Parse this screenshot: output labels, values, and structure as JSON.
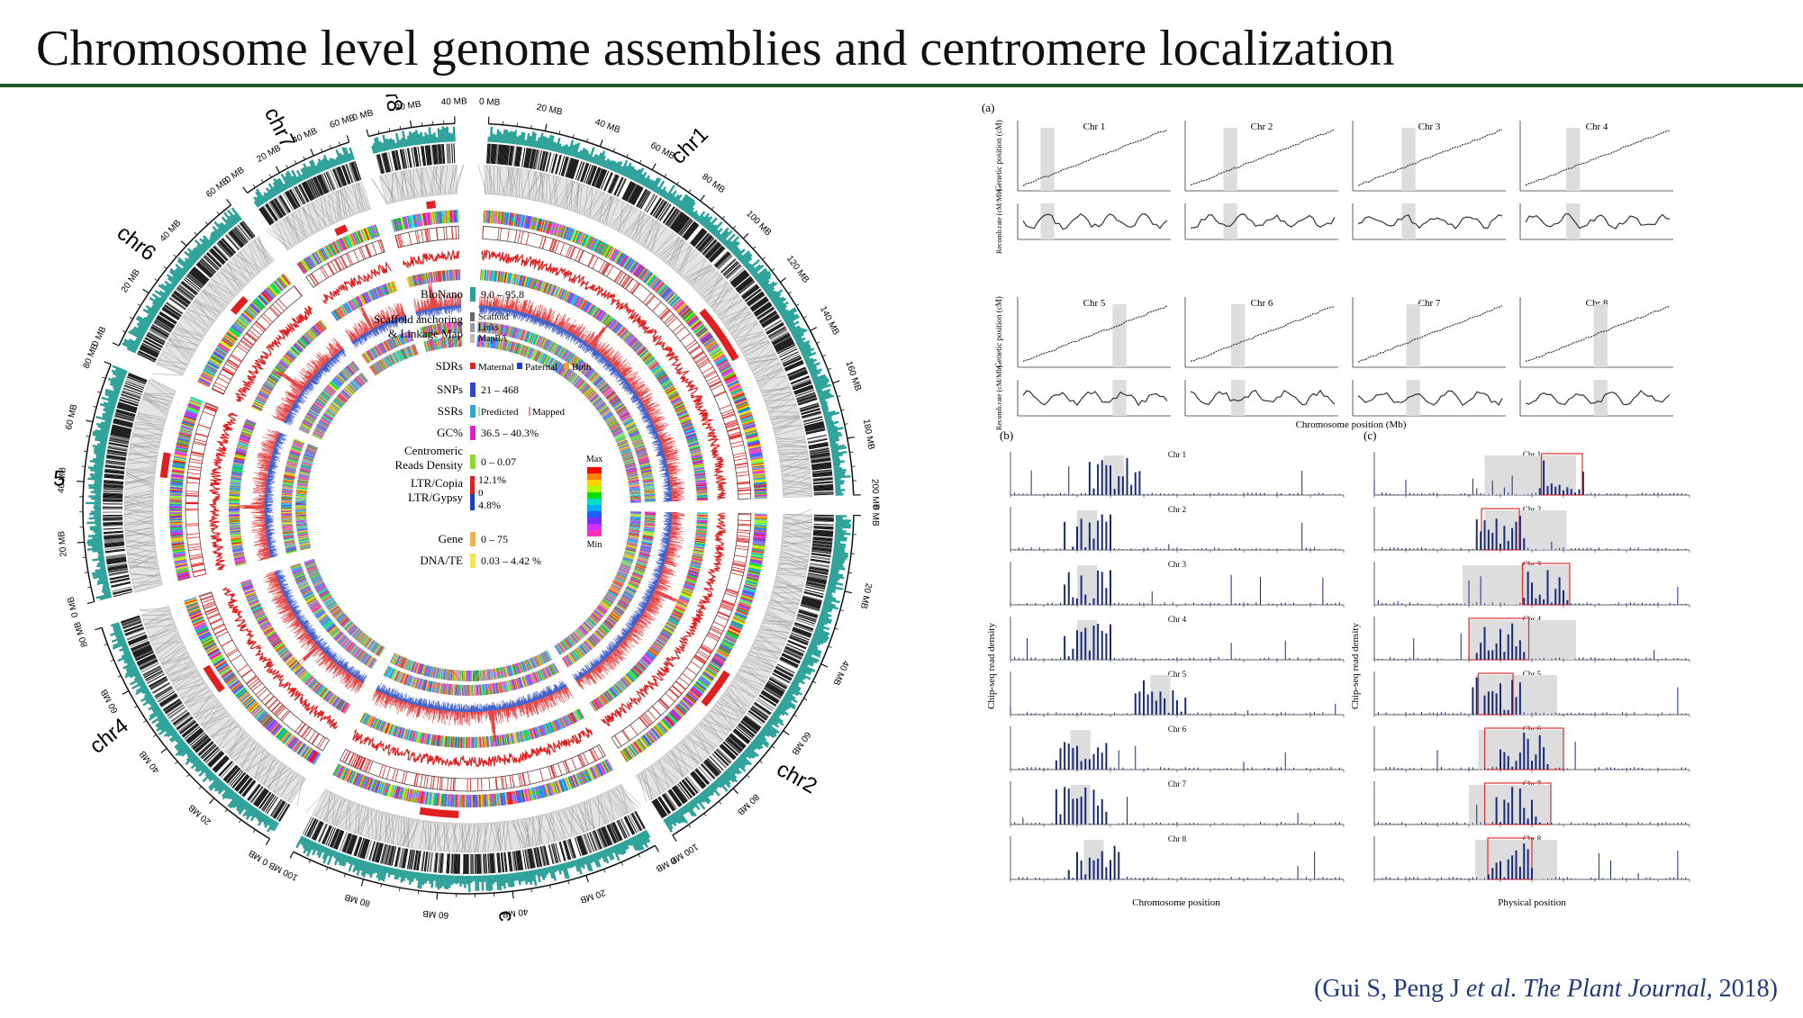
{
  "title": "Chromosome level genome assemblies and centromere localization",
  "citation": {
    "pre": "(Gui S, Peng J ",
    "etal": "et al",
    "mid": ". ",
    "journal": "The Plant Journal,",
    "year": " 2018)"
  },
  "colors": {
    "accent_rule": "#1f5a2c",
    "citation": "#1f3a7a",
    "bionano": "#2aa198",
    "maternal": "#e02020",
    "paternal": "#1a3fbf",
    "both": "#f0a030",
    "snp": "#3344cc",
    "gc": "#dd22cc",
    "centromere": "#88dd22",
    "ltr": "#e02020",
    "gene": "#f2b04a",
    "dnate": "#f2e64a"
  },
  "circos": {
    "chromosomes": [
      {
        "name": "chr1",
        "ticks": [
          "0 MB",
          "20 MB",
          "40 MB",
          "60 MB",
          "80 MB",
          "100 MB",
          "120 MB",
          "140 MB",
          "160 MB",
          "180 MB",
          "200 MB"
        ]
      },
      {
        "name": "chr2",
        "ticks": [
          "0 MB",
          "20 MB",
          "40 MB",
          "60 MB",
          "80 MB",
          "100 MB"
        ]
      },
      {
        "name": "chr3",
        "ticks": [
          "0 MB",
          "20 MB",
          "40 MB",
          "60 MB",
          "80 MB",
          "100 MB"
        ]
      },
      {
        "name": "chr4",
        "ticks": [
          "0 MB",
          "20 MB",
          "40 MB",
          "60 MB",
          "80 MB"
        ]
      },
      {
        "name": "chr5",
        "ticks": [
          "0 MB",
          "20 MB",
          "40 MB",
          "60 MB",
          "80 MB"
        ]
      },
      {
        "name": "chr6",
        "ticks": [
          "0 MB",
          "20 MB",
          "40 MB",
          "60 MB"
        ]
      },
      {
        "name": "chr7",
        "ticks": [
          "0 MB",
          "20 MB",
          "40 MB",
          "60 MB"
        ]
      },
      {
        "name": "chr8",
        "ticks": [
          "0 MB",
          "20 MB",
          "40 MB"
        ]
      }
    ],
    "legend": [
      {
        "label": "BioNano",
        "value": "9.0 – 95.8"
      },
      {
        "label": "Scaffold anchoring & Linkage Map",
        "items": [
          "Scaffold",
          "Links",
          "MapBA"
        ]
      },
      {
        "label": "SDRs",
        "items": [
          "Maternal",
          "Paternal",
          "Both"
        ]
      },
      {
        "label": "SNPs",
        "value": "21 – 468"
      },
      {
        "label": "SSRs",
        "items": [
          "Predicted",
          "Mapped"
        ]
      },
      {
        "label": "GC%",
        "value": "36.5 – 40.3%"
      },
      {
        "label": "Centromeric Reads Density",
        "value": "0 – 0.07"
      },
      {
        "label": "LTR/Copia LTR/Gypsy",
        "value_hi": "12.1%",
        "value_mid": "0",
        "value_lo": "4.8%"
      },
      {
        "label": "Gene",
        "value": "0 – 75"
      },
      {
        "label": "DNA/TE",
        "value": "0.03 – 4.42 %"
      }
    ],
    "scale": {
      "max": "Max",
      "min": "Min"
    }
  },
  "panel_a": {
    "label": "(a)",
    "charts": [
      "Chr 1",
      "Chr 2",
      "Chr 3",
      "Chr 4",
      "Chr 5",
      "Chr 6",
      "Chr 7",
      "Chr 8"
    ],
    "ylabel_top": "Genetic position (cM)",
    "ylabel_bottom": "Recomb.rate (cM/Mb)",
    "xlabel": "Chromosome position (Mb)"
  },
  "panel_b": {
    "label": "(b)",
    "charts": [
      "Chr 1",
      "Chr 2",
      "Chr 3",
      "Chr 4",
      "Chr 5",
      "Chr 6",
      "Chr 7",
      "Chr 8"
    ],
    "ylabel": "Chip-seq read density",
    "xlabel": "Chromosome position"
  },
  "panel_c": {
    "label": "(c)",
    "charts": [
      "Chr 1",
      "Chr 2",
      "Chr 3",
      "Chr 4",
      "Chr 5",
      "Chr 6",
      "Chr 7",
      "Chr 8"
    ],
    "ylabel": "Chip-seq read density",
    "xlabel": "Physical position"
  }
}
